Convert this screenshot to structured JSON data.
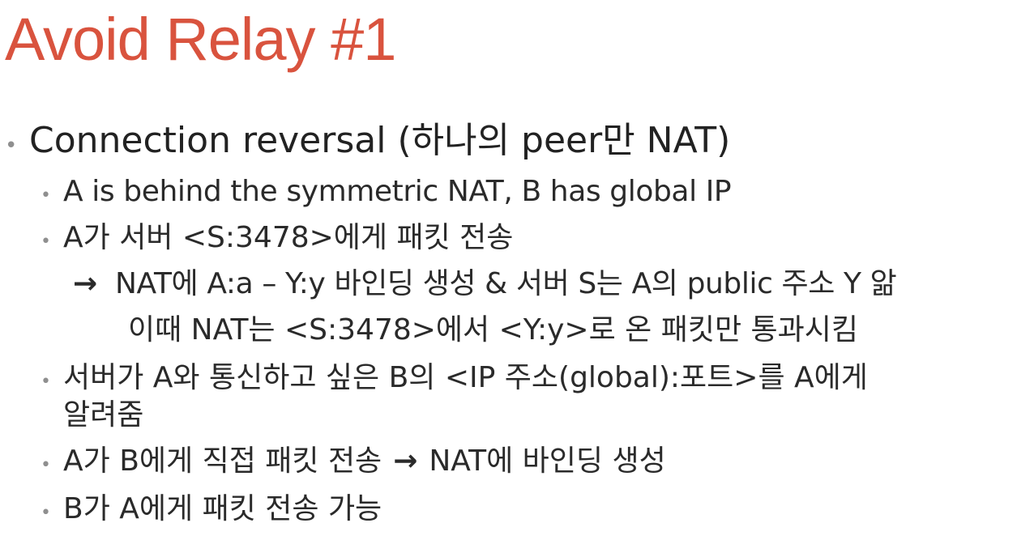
{
  "slide": {
    "title": "Avoid Relay #1",
    "bullet_symbol": "•",
    "arrow_symbol": "→",
    "level1": {
      "text": "Connection reversal (하나의 peer만 NAT)"
    },
    "items": [
      {
        "text": "A is behind the symmetric NAT, B has global IP"
      },
      {
        "text": "A가 서버 <S:3478>에게 패킷 전송"
      },
      {
        "arrow_text": "NAT에 A:a – Y:y 바인딩 생성 & 서버 S는 A의 public 주소 Y 앎"
      },
      {
        "indent_text": "이때 NAT는 <S:3478>에서 <Y:y>로 온 패킷만 통과시킴"
      },
      {
        "text": "서버가 A와 통신하고 싶은 B의 <IP 주소(global):포트>를 A에게",
        "continuation": "알려줌"
      },
      {
        "text_before_arrow": "A가 B에게 직접 패킷 전송",
        "text_after_arrow": "NAT에 바인딩 생성"
      },
      {
        "text": "B가 A에게 패킷 전송 가능"
      }
    ]
  }
}
